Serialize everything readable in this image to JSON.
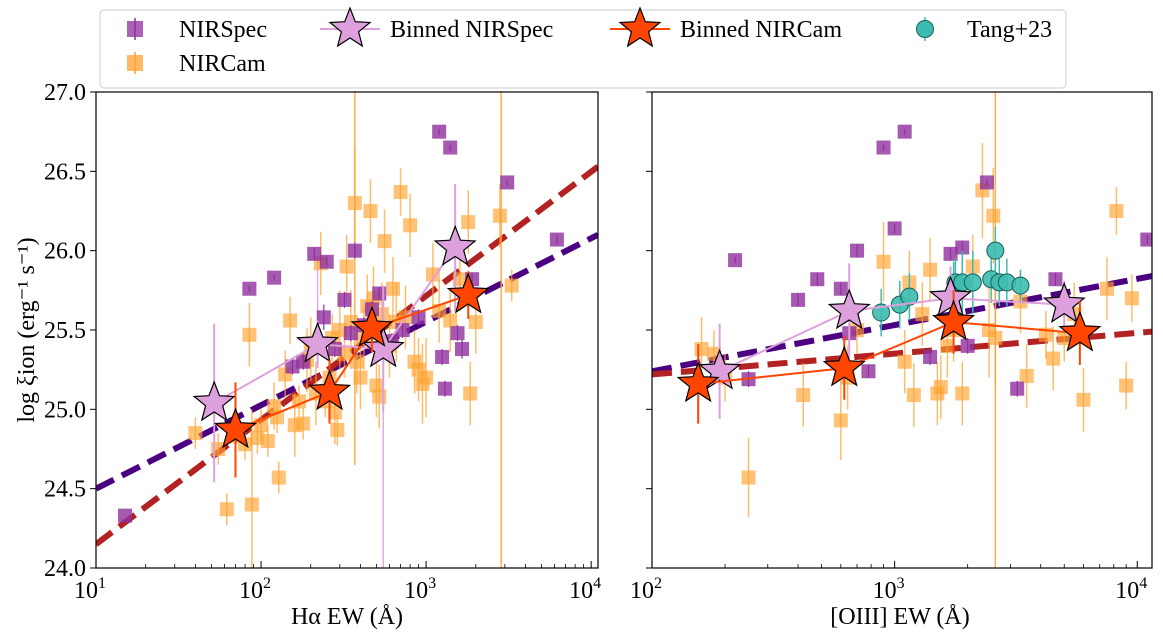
{
  "colors": {
    "nirspec": "#8e2f9c",
    "nircam": "#ffa12e",
    "binned_nirspec": "#dda0dd",
    "binned_nircam": "#ff4500",
    "tang": "#3cbcb0",
    "fit_purple": "#4b0082",
    "fit_red": "#b22222"
  },
  "legend": {
    "items": [
      {
        "label": "NIRSpec",
        "marker": "square",
        "color": "#8e2f9c"
      },
      {
        "label": "NIRCam",
        "marker": "square",
        "color": "#ffa12e"
      },
      {
        "label": "Binned NIRSpec",
        "marker": "star",
        "color": "#dda0dd"
      },
      {
        "label": "Binned NIRCam",
        "marker": "star",
        "color": "#ff4500"
      },
      {
        "label": "Tang+23",
        "marker": "circle",
        "color": "#3cbcb0"
      }
    ]
  },
  "chart_data": [
    {
      "type": "scatter",
      "panel": "left",
      "xlabel": "Hα EW (Å)",
      "ylabel": "log ξion (erg⁻¹ s⁻¹)",
      "xscale": "log",
      "xlim": [
        10,
        11000
      ],
      "ylim": [
        24.0,
        27.0
      ],
      "xticks": [
        {
          "v": 10,
          "b": "10",
          "e": "1"
        },
        {
          "v": 100,
          "b": "10",
          "e": "2"
        },
        {
          "v": 1000,
          "b": "10",
          "e": "3"
        },
        {
          "v": 10000,
          "b": "10",
          "e": "4"
        }
      ],
      "yticks": [
        "24.0",
        "24.5",
        "25.0",
        "25.5",
        "26.0",
        "26.5",
        "27.0"
      ],
      "fits": [
        {
          "name": "fit-purple",
          "color": "#4b0082",
          "x": [
            10,
            11000
          ],
          "y": [
            24.5,
            26.1
          ]
        },
        {
          "name": "fit-red",
          "color": "#b22222",
          "x": [
            10,
            11000
          ],
          "y": [
            24.15,
            26.53
          ]
        }
      ],
      "nirspec": [
        [
          15,
          24.33,
          0
        ],
        [
          85,
          25.76,
          0.02
        ],
        [
          120,
          25.83,
          0.02
        ],
        [
          155,
          25.27,
          0.05
        ],
        [
          210,
          25.98,
          0.04
        ],
        [
          250,
          25.93,
          0.03
        ],
        [
          240,
          25.58,
          0.08
        ],
        [
          320,
          25.69,
          0.05
        ],
        [
          350,
          25.48,
          0.05
        ],
        [
          370,
          26.0,
          0.05
        ],
        [
          420,
          25.53,
          0.05
        ],
        [
          470,
          25.63,
          0.05
        ],
        [
          520,
          25.73,
          0.04
        ],
        [
          620,
          25.43,
          0.05
        ],
        [
          720,
          25.5,
          0.05
        ],
        [
          900,
          25.58,
          0.05
        ],
        [
          1200,
          26.75,
          0.02
        ],
        [
          1250,
          25.33,
          0.05
        ],
        [
          1300,
          25.13,
          0.05
        ],
        [
          1400,
          26.65,
          0.02
        ],
        [
          1550,
          25.48,
          0.05
        ],
        [
          1650,
          25.38,
          0.06
        ],
        [
          1900,
          25.82,
          0.04
        ],
        [
          3100,
          26.43,
          0.02
        ],
        [
          6200,
          26.07,
          0.03
        ],
        [
          180,
          25.3,
          0.05
        ],
        [
          280,
          25.38,
          0.05
        ]
      ],
      "nircam": [
        [
          40,
          24.85,
          0.1
        ],
        [
          55,
          24.75,
          0.1
        ],
        [
          62,
          24.37,
          0.1
        ],
        [
          70,
          24.83,
          0.12
        ],
        [
          80,
          24.78,
          0.1
        ],
        [
          85,
          25.47,
          0.2
        ],
        [
          88,
          24.4,
          0.6
        ],
        [
          95,
          24.82,
          0.1
        ],
        [
          100,
          24.9,
          0.1
        ],
        [
          110,
          24.8,
          0.1
        ],
        [
          120,
          25.02,
          0.15
        ],
        [
          125,
          24.95,
          0.1
        ],
        [
          128,
          24.57,
          0.1
        ],
        [
          140,
          25.22,
          0.15
        ],
        [
          150,
          25.56,
          0.15
        ],
        [
          160,
          24.9,
          0.2
        ],
        [
          170,
          25.05,
          0.1
        ],
        [
          180,
          24.91,
          0.1
        ],
        [
          190,
          25.31,
          0.2
        ],
        [
          200,
          25.38,
          0.2
        ],
        [
          215,
          25.1,
          0.2
        ],
        [
          230,
          25.92,
          0.2
        ],
        [
          245,
          25.05,
          0.1
        ],
        [
          260,
          25.2,
          0.2
        ],
        [
          270,
          25.45,
          0.15
        ],
        [
          280,
          24.98,
          0.2
        ],
        [
          290,
          24.87,
          0.1
        ],
        [
          300,
          25.5,
          0.25
        ],
        [
          320,
          25.35,
          0.15
        ],
        [
          330,
          25.9,
          0.2
        ],
        [
          350,
          25.55,
          0.2
        ],
        [
          370,
          26.3,
          0.35
        ],
        [
          380,
          25.3,
          0.2
        ],
        [
          400,
          25.2,
          0.2
        ],
        [
          420,
          25.45,
          0.2
        ],
        [
          440,
          25.65,
          0.2
        ],
        [
          460,
          26.25,
          0.2
        ],
        [
          480,
          25.7,
          0.2
        ],
        [
          500,
          25.15,
          0.2
        ],
        [
          520,
          25.08,
          0.2
        ],
        [
          540,
          25.6,
          0.2
        ],
        [
          560,
          26.06,
          0.2
        ],
        [
          600,
          25.4,
          0.2
        ],
        [
          630,
          25.76,
          0.2
        ],
        [
          660,
          25.55,
          0.25
        ],
        [
          700,
          26.37,
          0.15
        ],
        [
          750,
          25.58,
          0.2
        ],
        [
          800,
          26.16,
          0.2
        ],
        [
          850,
          25.3,
          0.2
        ],
        [
          900,
          25.25,
          0.2
        ],
        [
          950,
          25.16,
          0.25
        ],
        [
          1000,
          25.2,
          0.25
        ],
        [
          1100,
          25.85,
          0.2
        ],
        [
          1200,
          25.62,
          0.2
        ],
        [
          1400,
          25.56,
          0.2
        ],
        [
          1600,
          25.82,
          0.2
        ],
        [
          1800,
          26.18,
          0.2
        ],
        [
          1850,
          25.1,
          0.2
        ],
        [
          2000,
          25.55,
          0.2
        ],
        [
          2800,
          26.22,
          0.2
        ],
        [
          3300,
          25.78,
          0.1
        ]
      ],
      "binned_nirspec": [
        [
          52,
          25.04,
          0.5
        ],
        [
          220,
          25.41,
          0.15
        ],
        [
          550,
          25.38,
          0.4
        ],
        [
          1500,
          26.02,
          0.4
        ]
      ],
      "binned_nircam": [
        [
          70,
          24.87,
          0.3
        ],
        [
          260,
          25.11,
          0.2
        ],
        [
          470,
          25.51,
          0.15
        ],
        [
          1800,
          25.72,
          0.15
        ]
      ],
      "big_errorbars": [
        {
          "x": 370,
          "y0": 24.65,
          "y1": 27.0,
          "color": "#ffa12e"
        },
        {
          "x": 2850,
          "y0": 24.0,
          "y1": 27.0,
          "color": "#ffa12e"
        },
        {
          "x": 550,
          "y0": 24.0,
          "y1": 25.38,
          "color": "#dda0dd"
        },
        {
          "x": 220,
          "y0": 25.41,
          "y1": 25.95,
          "color": "#dda0dd"
        }
      ]
    },
    {
      "type": "scatter",
      "panel": "right",
      "xlabel": "[OIII] EW (Å)",
      "ylabel": "",
      "xscale": "log",
      "xlim": [
        100,
        11500
      ],
      "ylim": [
        24.0,
        27.0
      ],
      "xticks": [
        {
          "v": 100,
          "b": "10",
          "e": "2"
        },
        {
          "v": 1000,
          "b": "10",
          "e": "3"
        },
        {
          "v": 10000,
          "b": "10",
          "e": "4"
        }
      ],
      "yticks": [],
      "fits": [
        {
          "name": "fit-purple",
          "color": "#4b0082",
          "x": [
            100,
            11500
          ],
          "y": [
            25.24,
            25.84
          ]
        },
        {
          "name": "fit-red",
          "color": "#b22222",
          "x": [
            100,
            11500
          ],
          "y": [
            25.22,
            25.49
          ]
        }
      ],
      "nirspec": [
        [
          220,
          25.94,
          0.02
        ],
        [
          250,
          25.19,
          0.05
        ],
        [
          400,
          25.69,
          0.04
        ],
        [
          480,
          25.82,
          0.04
        ],
        [
          600,
          25.76,
          0.04
        ],
        [
          650,
          25.48,
          0.05
        ],
        [
          700,
          26.0,
          0.04
        ],
        [
          780,
          25.24,
          0.04
        ],
        [
          900,
          26.65,
          0.02
        ],
        [
          1000,
          26.14,
          0.03
        ],
        [
          1100,
          26.75,
          0.02
        ],
        [
          1400,
          25.33,
          0.05
        ],
        [
          1700,
          25.98,
          0.04
        ],
        [
          1900,
          26.02,
          0.04
        ],
        [
          2000,
          25.4,
          0.05
        ],
        [
          2400,
          26.43,
          0.02
        ],
        [
          3200,
          25.13,
          0.05
        ],
        [
          4600,
          25.82,
          0.04
        ],
        [
          11000,
          26.07,
          0.03
        ]
      ],
      "nircam": [
        [
          160,
          25.38,
          0.2
        ],
        [
          180,
          25.35,
          0.15
        ],
        [
          200,
          25.2,
          0.15
        ],
        [
          250,
          24.57,
          0.25
        ],
        [
          420,
          25.09,
          0.2
        ],
        [
          600,
          24.93,
          0.25
        ],
        [
          640,
          25.2,
          0.2
        ],
        [
          700,
          25.5,
          0.15
        ],
        [
          900,
          25.93,
          0.25
        ],
        [
          1100,
          25.3,
          0.2
        ],
        [
          1150,
          25.8,
          0.2
        ],
        [
          1200,
          25.09,
          0.2
        ],
        [
          1300,
          25.6,
          0.2
        ],
        [
          1400,
          25.88,
          0.2
        ],
        [
          1500,
          25.1,
          0.2
        ],
        [
          1550,
          25.14,
          0.2
        ],
        [
          1650,
          25.4,
          0.2
        ],
        [
          1750,
          25.5,
          0.2
        ],
        [
          1900,
          25.1,
          0.2
        ],
        [
          2100,
          25.9,
          0.2
        ],
        [
          2300,
          26.38,
          0.3
        ],
        [
          2450,
          25.5,
          0.3
        ],
        [
          2550,
          26.22,
          0.3
        ],
        [
          2600,
          25.45,
          0.3
        ],
        [
          3300,
          25.68,
          0.2
        ],
        [
          3500,
          25.21,
          0.2
        ],
        [
          4200,
          25.47,
          0.15
        ],
        [
          4500,
          25.32,
          0.2
        ],
        [
          5000,
          25.45,
          0.15
        ],
        [
          5500,
          25.6,
          0.2
        ],
        [
          6000,
          25.06,
          0.2
        ],
        [
          7500,
          25.76,
          0.2
        ],
        [
          8200,
          26.25,
          0.15
        ],
        [
          9000,
          25.15,
          0.15
        ],
        [
          9500,
          25.7,
          0.15
        ]
      ],
      "tang": [
        [
          880,
          25.61,
          0.15
        ],
        [
          1050,
          25.66,
          0.15
        ],
        [
          1150,
          25.71,
          0.15
        ],
        [
          1750,
          25.73,
          0.2
        ],
        [
          1780,
          25.8,
          0.15
        ],
        [
          1900,
          25.8,
          0.2
        ],
        [
          2100,
          25.8,
          0.2
        ],
        [
          2500,
          25.82,
          0.15
        ],
        [
          2600,
          26.0,
          0.15
        ],
        [
          2700,
          25.8,
          0.15
        ],
        [
          2900,
          25.8,
          0.15
        ],
        [
          3300,
          25.78,
          0.1
        ]
      ],
      "binned_nirspec": [
        [
          190,
          25.24,
          0.3
        ],
        [
          650,
          25.62,
          0.3
        ],
        [
          1700,
          25.7,
          0.2
        ],
        [
          5000,
          25.66,
          0.15
        ]
      ],
      "binned_nircam": [
        [
          155,
          25.16,
          0.25
        ],
        [
          620,
          25.26,
          0.2
        ],
        [
          1750,
          25.55,
          0.2
        ],
        [
          5800,
          25.48,
          0.2
        ]
      ],
      "big_errorbars": [
        {
          "x": 2600,
          "y0": 24.0,
          "y1": 27.0,
          "color": "#ffa12e"
        }
      ]
    }
  ]
}
